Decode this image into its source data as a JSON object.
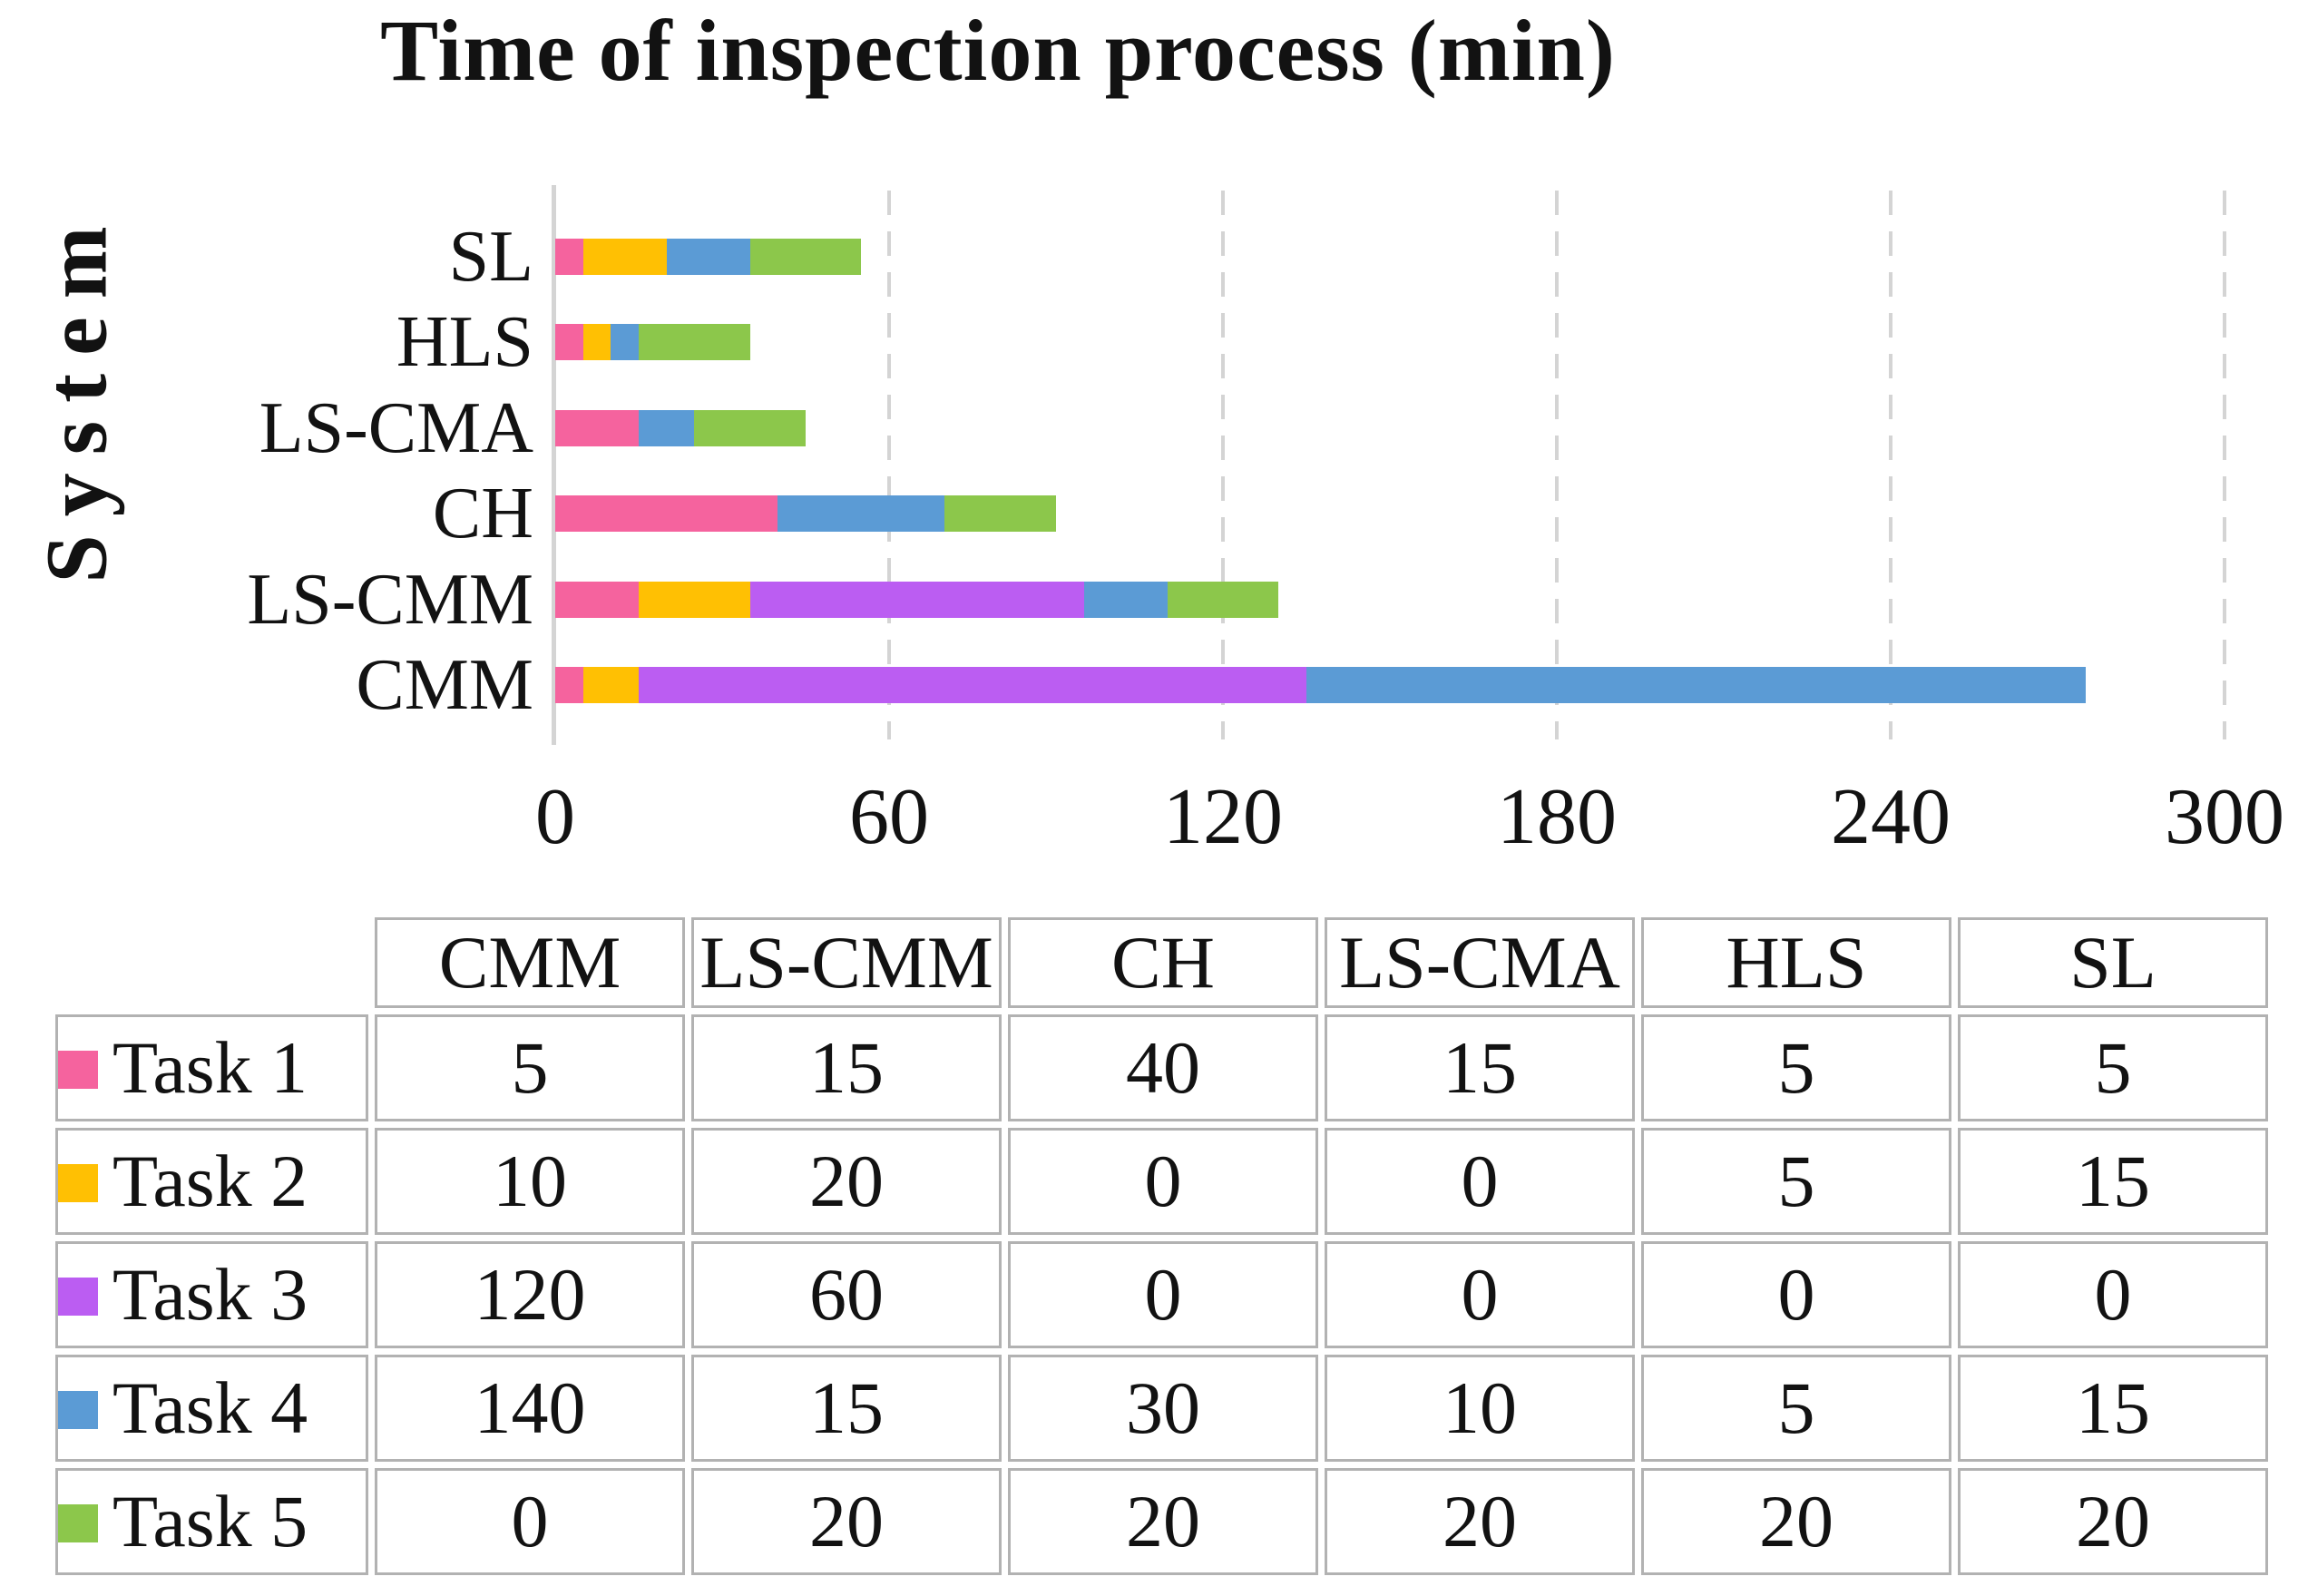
{
  "chart_data": {
    "type": "bar",
    "orientation": "horizontal",
    "stacked": true,
    "title": "Time of inspection process (min)",
    "ylabel": "System",
    "xlabel": "",
    "xlim": [
      0,
      300
    ],
    "x_ticks": [
      0,
      60,
      120,
      180,
      240,
      300
    ],
    "grid": "vertical-dashed",
    "legend_position": "table-left-column",
    "categories": [
      "SL",
      "HLS",
      "LS-CMA",
      "CH",
      "LS-CMM",
      "CMM"
    ],
    "series": [
      {
        "name": "Task 1",
        "color": "#F5639E",
        "values": [
          5,
          5,
          15,
          40,
          15,
          5
        ]
      },
      {
        "name": "Task 2",
        "color": "#FFC003",
        "values": [
          15,
          5,
          0,
          0,
          20,
          10
        ]
      },
      {
        "name": "Task 3",
        "color": "#BB5DF2",
        "values": [
          0,
          0,
          0,
          0,
          60,
          120
        ]
      },
      {
        "name": "Task 4",
        "color": "#5B9BD5",
        "values": [
          15,
          5,
          10,
          30,
          15,
          140
        ]
      },
      {
        "name": "Task 5",
        "color": "#8CC74B",
        "values": [
          20,
          20,
          20,
          20,
          20,
          0
        ]
      }
    ],
    "totals": [
      55,
      35,
      45,
      90,
      130,
      275
    ]
  },
  "table": {
    "corner": "",
    "columns": [
      "CMM",
      "LS-CMM",
      "CH",
      "LS-CMA",
      "HLS",
      "SL"
    ],
    "rows": [
      {
        "label": "Task 1",
        "color": "#F5639E",
        "values": [
          "5",
          "15",
          "40",
          "15",
          "5",
          "5"
        ]
      },
      {
        "label": "Task 2",
        "color": "#FFC003",
        "values": [
          "10",
          "20",
          "0",
          "0",
          "5",
          "15"
        ]
      },
      {
        "label": "Task 3",
        "color": "#BB5DF2",
        "values": [
          "120",
          "60",
          "0",
          "0",
          "0",
          "0"
        ]
      },
      {
        "label": "Task 4",
        "color": "#5B9BD5",
        "values": [
          "140",
          "15",
          "30",
          "10",
          "5",
          "15"
        ]
      },
      {
        "label": "Task 5",
        "color": "#8CC74B",
        "values": [
          "0",
          "20",
          "20",
          "20",
          "20",
          "20"
        ]
      }
    ]
  },
  "colors": {
    "task1_pink": "#F5639E",
    "task2_yellow": "#FFC003",
    "task3_purple": "#BB5DF2",
    "task4_blue": "#5B9BD5",
    "task5_green": "#8CC74B",
    "gridline": "#D4D4D4",
    "table_border": "#B2B2B2",
    "text": "#121212"
  }
}
